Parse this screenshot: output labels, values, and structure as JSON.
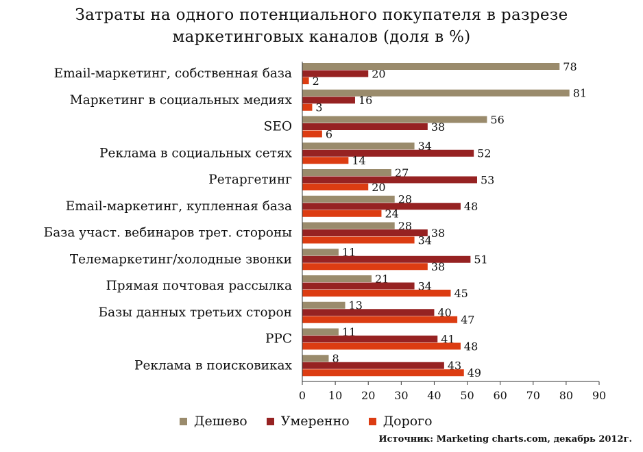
{
  "chart_data": {
    "type": "bar",
    "orientation": "horizontal",
    "title_lines": [
      "Затраты на одного потенциального покупателя в разрезе",
      "маркетинговых каналов (доля в %)"
    ],
    "categories": [
      "Email-маркетинг, собственная база",
      "Маркетинг в социальных медиях",
      "SEO",
      "Реклама в социальных сетях",
      "Ретаргетинг",
      "Email-маркетинг, купленная база",
      "База участ. вебинаров трет. стороны",
      "Телемаркетинг/холодные звонки",
      "Прямая почтовая рассылка",
      "Базы данных третьих сторон",
      "PPC",
      "Реклама в поисковиках"
    ],
    "series": [
      {
        "name": "Дешево",
        "color": "#9a8b6c",
        "values": [
          78,
          81,
          56,
          34,
          27,
          28,
          28,
          11,
          21,
          13,
          11,
          8
        ]
      },
      {
        "name": "Умеренно",
        "color": "#962222",
        "values": [
          20,
          16,
          38,
          52,
          53,
          48,
          38,
          51,
          34,
          40,
          41,
          43
        ]
      },
      {
        "name": "Дорого",
        "color": "#dc3c12",
        "values": [
          2,
          3,
          6,
          14,
          20,
          24,
          34,
          38,
          45,
          47,
          48,
          49
        ]
      }
    ],
    "xlim": [
      0,
      90
    ],
    "xticks": [
      0,
      10,
      20,
      30,
      40,
      50,
      60,
      70,
      80,
      90
    ],
    "xlabel": "",
    "ylabel": "",
    "grid": false,
    "legend_position": "bottom"
  },
  "source": "Источник: Marketing charts.com, декабрь 2012г."
}
